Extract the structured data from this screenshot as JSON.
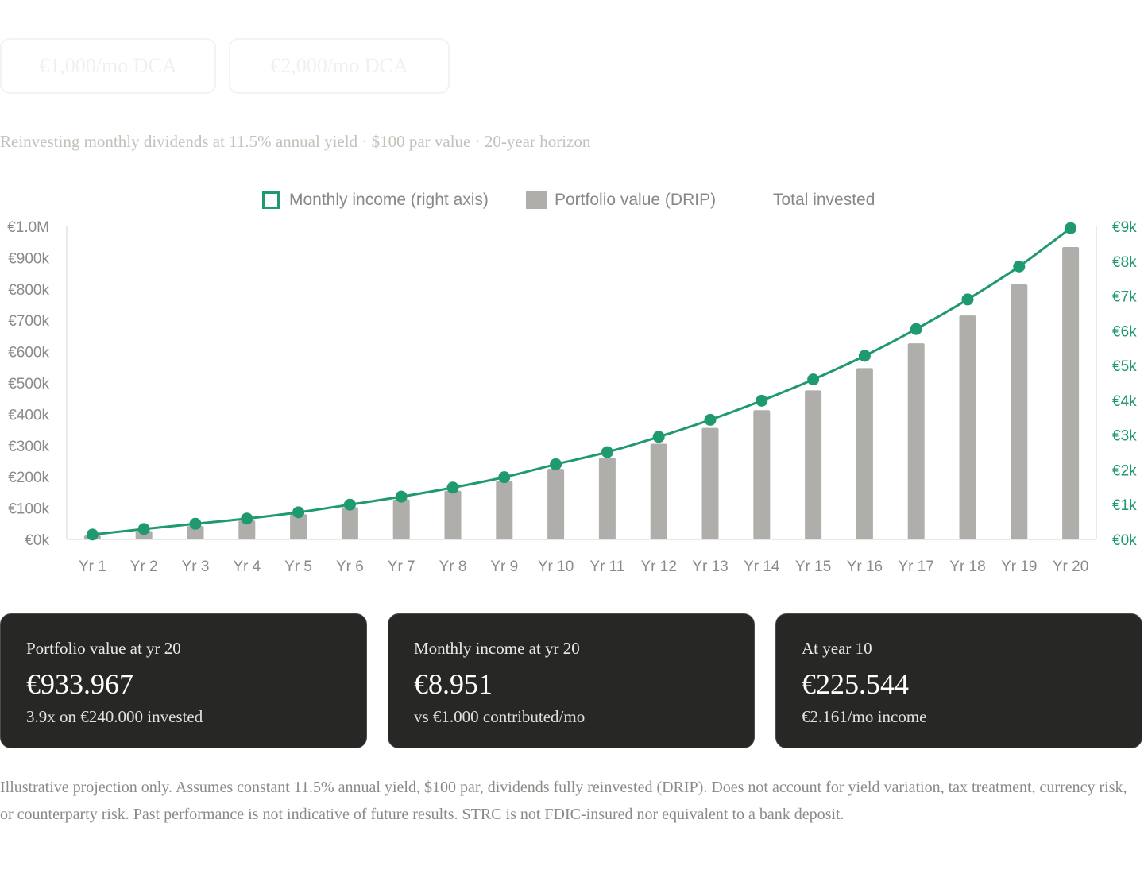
{
  "tabs": [
    {
      "label": "€1,000/mo DCA"
    },
    {
      "label": "€2,000/mo DCA"
    }
  ],
  "subtitle": "Reinvesting monthly dividends at 11.5% annual yield · $100 par value · 20-year horizon",
  "legend": {
    "income": "Monthly income (right axis)",
    "portfolio": "Portfolio value (DRIP)",
    "invested": "Total invested"
  },
  "colors": {
    "income_line": "#1e9a6e",
    "portfolio_bar": "#b0aeab",
    "axis_text": "#888888",
    "card_bg": "#272725"
  },
  "chart_data": {
    "type": "bar",
    "categories": [
      "Yr 1",
      "Yr 2",
      "Yr 3",
      "Yr 4",
      "Yr 5",
      "Yr 6",
      "Yr 7",
      "Yr 8",
      "Yr 9",
      "Yr 10",
      "Yr 11",
      "Yr 12",
      "Yr 13",
      "Yr 14",
      "Yr 15",
      "Yr 16",
      "Yr 17",
      "Yr 18",
      "Yr 19",
      "Yr 20"
    ],
    "series": [
      {
        "name": "Portfolio value (DRIP)",
        "type": "bar",
        "axis": "left",
        "values": [
          12700,
          26900,
          42800,
          60600,
          80500,
          102800,
          127800,
          155700,
          186900,
          225544,
          260700,
          305900,
          356400,
          413000,
          476300,
          547200,
          626500,
          715300,
          814700,
          933967
        ]
      },
      {
        "name": "Monthly income (right axis)",
        "type": "line",
        "axis": "right",
        "values": [
          140,
          300,
          450,
          600,
          780,
          1000,
          1230,
          1490,
          1790,
          2161,
          2510,
          2950,
          3440,
          3990,
          4600,
          5280,
          6050,
          6900,
          7850,
          8951
        ]
      }
    ],
    "y_left": {
      "ylim": [
        0,
        1000000
      ],
      "ticks": [
        "€0k",
        "€100k",
        "€200k",
        "€300k",
        "€400k",
        "€500k",
        "€600k",
        "€700k",
        "€800k",
        "€900k",
        "€1.0M"
      ]
    },
    "y_right": {
      "ylim": [
        0,
        9000
      ],
      "ticks": [
        "€0k",
        "€1k",
        "€2k",
        "€3k",
        "€4k",
        "€5k",
        "€6k",
        "€7k",
        "€8k",
        "€9k"
      ]
    },
    "grid": false,
    "legend_position": "top-center"
  },
  "cards": [
    {
      "label": "Portfolio value at yr 20",
      "value": "€933.967",
      "sub": "3.9x on €240.000 invested"
    },
    {
      "label": "Monthly income at yr 20",
      "value": "€8.951",
      "sub": "vs €1.000 contributed/mo"
    },
    {
      "label": "At year 10",
      "value": "€225.544",
      "sub": "€2.161/mo income"
    }
  ],
  "disclaimer": "Illustrative projection only. Assumes constant 11.5% annual yield, $100 par, dividends fully reinvested (DRIP). Does not account for yield variation, tax treatment, currency risk, or counterparty risk. Past performance is not indicative of future results. STRC is not FDIC-insured nor equivalent to a bank deposit."
}
